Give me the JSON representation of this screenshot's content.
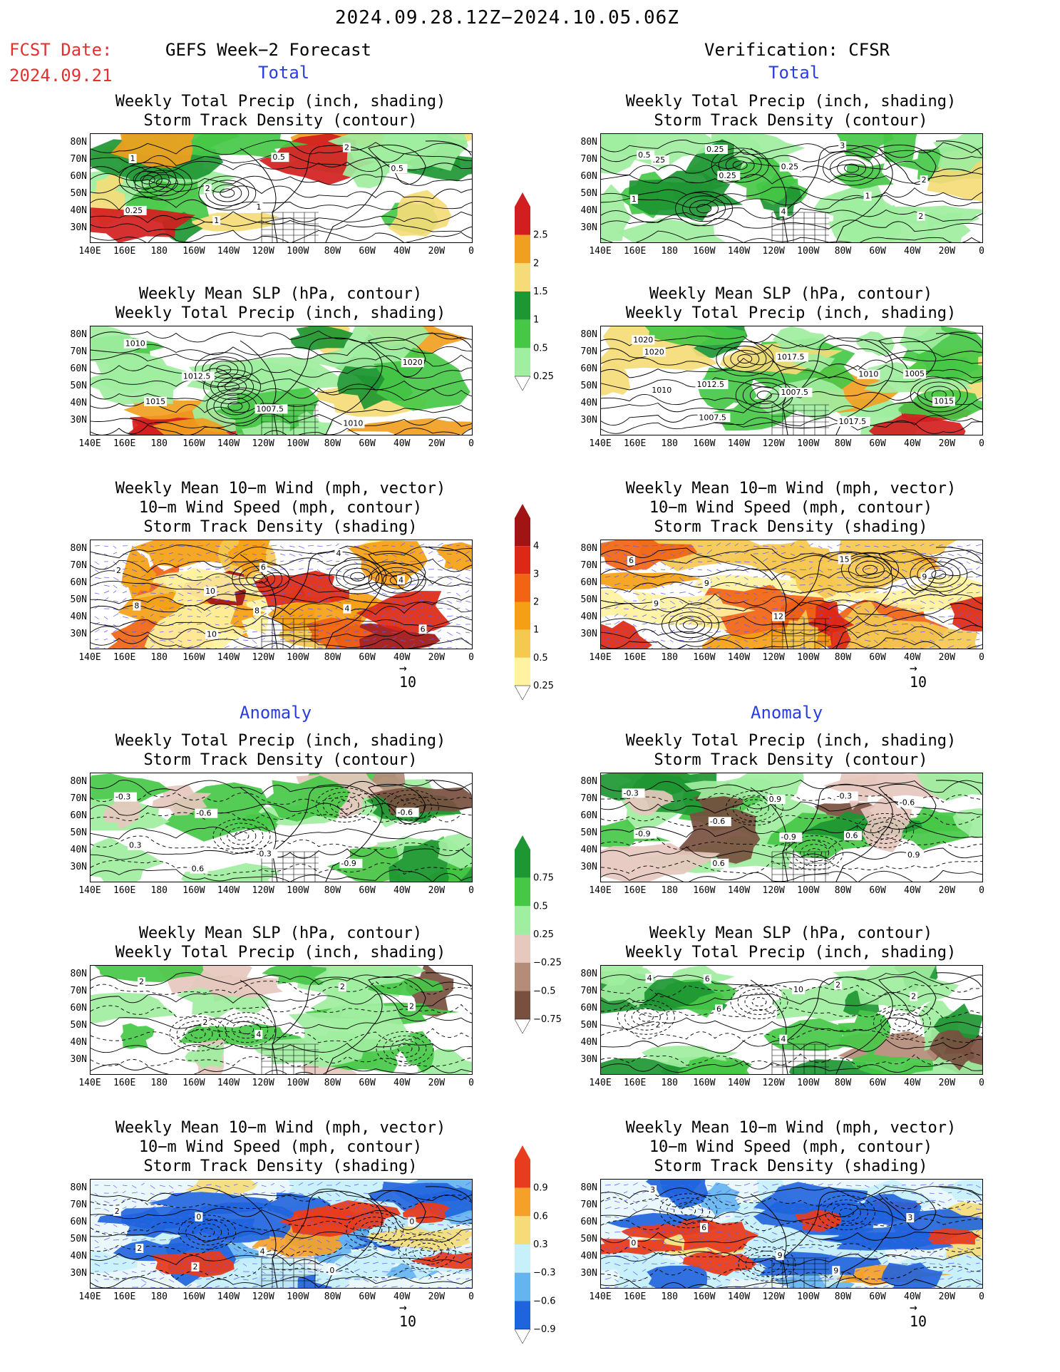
{
  "header": {
    "date_range": "2024.09.28.12Z−2024.10.05.06Z",
    "fcst_label": "FCST Date:",
    "fcst_date": "2024.09.21",
    "left_title": "GEFS Week−2 Forecast",
    "right_title": "Verification: CFSR"
  },
  "sections": {
    "total": "Total",
    "anomaly": "Anomaly"
  },
  "panel_titles": {
    "precip_storm": "Weekly Total Precip (inch, shading)\nStorm Track Density (contour)",
    "slp_precip": "Weekly Mean SLP (hPa, contour)\nWeekly Total Precip (inch, shading)",
    "wind_storm": "Weekly Mean 10−m Wind (mph, vector)\n10−m Wind Speed (mph, contour)\nStorm Track Density (shading)"
  },
  "axes": {
    "lat_labels": [
      "80N",
      "70N",
      "60N",
      "50N",
      "40N",
      "30N"
    ],
    "lon_labels": [
      "140E",
      "160E",
      "180",
      "160W",
      "140W",
      "120W",
      "100W",
      "80W",
      "60W",
      "40W",
      "20W",
      "0"
    ]
  },
  "vector_ref": "10",
  "colorbars": {
    "precip_total": {
      "labels": [
        "2.5",
        "2",
        "1.5",
        "1",
        "0.5",
        "0.25"
      ],
      "colors": [
        "#d21e1e",
        "#f0a020",
        "#f5dc78",
        "#1e9632",
        "#46c846",
        "#a0eea0"
      ]
    },
    "storm_total": {
      "labels": [
        "4",
        "3",
        "2",
        "1",
        "0.5",
        "0.25"
      ],
      "colors": [
        "#a01414",
        "#dc2814",
        "#f06414",
        "#f5a014",
        "#f5c850",
        "#fff2a0"
      ]
    },
    "precip_anom": {
      "labels": [
        "0.75",
        "0.5",
        "0.25",
        "−0.25",
        "−0.5",
        "−0.75"
      ],
      "colors": [
        "#1e9632",
        "#46c846",
        "#a0eea0",
        "#e6c8be",
        "#b48c78",
        "#785040"
      ]
    },
    "storm_anom": {
      "labels": [
        "0.9",
        "0.6",
        "0.3",
        "−0.3",
        "−0.6",
        "−0.9"
      ],
      "colors": [
        "#e83c1e",
        "#f5a028",
        "#f5dc78",
        "#c8f0fa",
        "#64b4f0",
        "#1e64dc"
      ]
    }
  },
  "contour_labels": {
    "p1": [
      "1",
      "2",
      "1",
      "2",
      "0.5",
      "0.25",
      "1",
      "0.5"
    ],
    "p2": [
      "0.5",
      "0.25",
      "4",
      "3",
      "2",
      "1",
      "0.25",
      "0.25",
      "1",
      "2",
      ".25"
    ],
    "p3": [
      "1010",
      "1012.5",
      "1007.5",
      "1010",
      "1020",
      "1015"
    ],
    "p4": [
      "1020",
      "1012.5",
      "1007.5",
      "1017.5",
      "1005",
      "1010",
      "1007.5",
      "1017.5",
      "1010",
      "1015",
      "1020"
    ],
    "p5": [
      "2",
      "10",
      "8",
      "4",
      "4",
      "8",
      "10",
      "6",
      "4",
      "6"
    ],
    "p6": [
      "6",
      "9",
      "12",
      "15",
      "9",
      "9"
    ],
    "p7": [
      "-0.3",
      "-0.6",
      "-0.3",
      "-0.9",
      "-0.6",
      "0.3",
      "0.6"
    ],
    "p8": [
      "-0.3",
      "-0.6",
      "-0.9",
      "-0.3",
      "-0.6",
      "-0.9",
      "0.6",
      "0.9",
      "0.6",
      "0.9"
    ],
    "p9": [
      "2",
      "2",
      "4",
      "2",
      "2"
    ],
    "p10": [
      "4",
      "6",
      "4",
      "2",
      "2",
      "2",
      "6",
      "10"
    ],
    "p11": [
      "2",
      "0",
      "4",
      "0",
      "0",
      "2",
      "2"
    ],
    "p12": [
      "3",
      "6",
      "9",
      "9",
      "3",
      "0"
    ]
  }
}
